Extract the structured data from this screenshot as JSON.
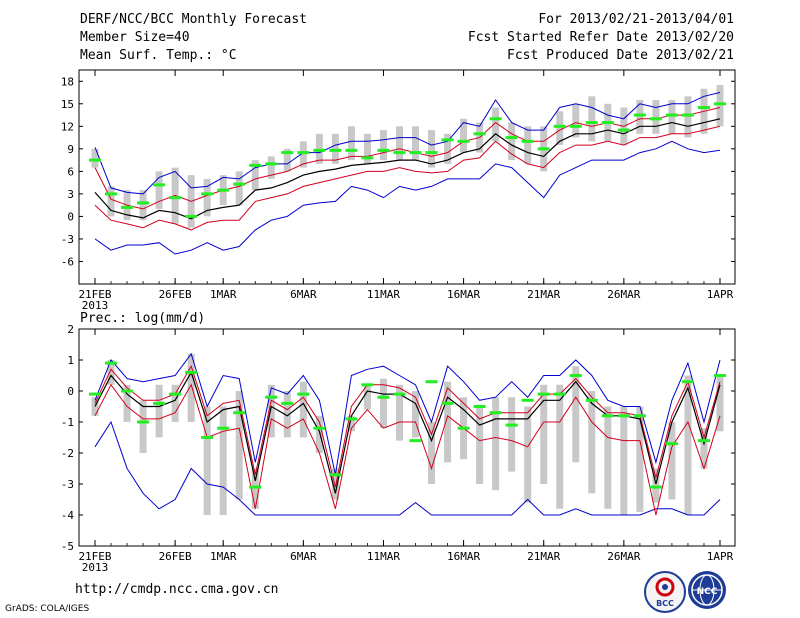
{
  "header": {
    "title": "DERF/NCC/BCC Monthly Forecast",
    "member_size": "Member Size=40",
    "panel1_label": "Mean Surf. Temp.: °C",
    "forecast_period": "For 2013/02/21-2013/04/01",
    "refer_date": "Fcst Started Refer Date 2013/02/20",
    "produced_date": "Fcst Produced Date 2013/02/21"
  },
  "footer": {
    "url": "http://cmdp.ncc.cma.gov.cn",
    "credit": "GrADS: COLA/IGES",
    "logo_bcc": "BCC",
    "logo_ncc": "NCC"
  },
  "colors": {
    "mean": "#000000",
    "spread": "#d0001c",
    "range": "#0000cc",
    "box": "#c8c8c8",
    "obs": "#22ee22"
  },
  "chart_data": [
    {
      "type": "line",
      "title": "Mean Surf. Temp.: °C",
      "xlabel": "",
      "ylabel": "°C",
      "xlim": [
        0,
        39
      ],
      "ylim": [
        -9,
        19.5
      ],
      "yticks": [
        -6,
        -3,
        0,
        3,
        6,
        9,
        12,
        15,
        18
      ],
      "xticks": [
        {
          "x": 0,
          "label": "21FEB"
        },
        {
          "x": 5,
          "label": "26FEB"
        },
        {
          "x": 8,
          "label": "1MAR"
        },
        {
          "x": 13,
          "label": "6MAR"
        },
        {
          "x": 18,
          "label": "11MAR"
        },
        {
          "x": 23,
          "label": "16MAR"
        },
        {
          "x": 28,
          "label": "21MAR"
        },
        {
          "x": 33,
          "label": "26MAR"
        },
        {
          "x": 39,
          "label": "1APR"
        }
      ],
      "year_label": "2013",
      "series": [
        {
          "name": "max",
          "values": [
            9.2,
            3.8,
            3.2,
            3.0,
            5.2,
            6.0,
            3.8,
            4.0,
            5.2,
            5.0,
            6.5,
            7.0,
            7.0,
            8.5,
            8.5,
            9.5,
            10.0,
            10.0,
            10.2,
            10.5,
            10.5,
            9.5,
            10.0,
            12.5,
            12.0,
            15.5,
            12.5,
            11.5,
            11.5,
            14.5,
            15.0,
            14.5,
            13.5,
            13.0,
            15.0,
            14.5,
            15.0,
            15.0,
            16.0,
            16.5
          ]
        },
        {
          "name": "upper",
          "values": [
            6.5,
            2.3,
            1.5,
            1.0,
            2.0,
            2.8,
            2.0,
            2.8,
            3.5,
            4.0,
            5.0,
            5.5,
            6.0,
            7.0,
            7.5,
            7.5,
            8.0,
            8.0,
            8.5,
            9.0,
            8.5,
            8.0,
            8.5,
            10.0,
            10.5,
            12.5,
            11.0,
            10.0,
            10.0,
            11.5,
            12.5,
            12.0,
            12.5,
            12.0,
            13.0,
            13.0,
            13.5,
            13.5,
            14.0,
            14.5
          ]
        },
        {
          "name": "mean",
          "values": [
            3.2,
            0.8,
            0.2,
            -0.2,
            0.8,
            0.5,
            -0.3,
            0.8,
            1.2,
            1.5,
            3.5,
            3.8,
            4.5,
            5.5,
            6.0,
            6.3,
            6.8,
            7.0,
            7.2,
            7.5,
            7.5,
            7.0,
            7.5,
            8.5,
            9.0,
            11.0,
            9.5,
            8.5,
            8.0,
            10.0,
            11.0,
            11.0,
            11.5,
            11.0,
            12.0,
            12.0,
            12.5,
            12.0,
            12.5,
            13.0
          ]
        },
        {
          "name": "lower",
          "values": [
            1.5,
            -0.5,
            -1.0,
            -1.5,
            -0.5,
            -1.0,
            -1.8,
            -0.8,
            -0.5,
            -0.5,
            2.0,
            2.5,
            3.0,
            4.0,
            4.5,
            5.0,
            5.5,
            6.0,
            6.0,
            6.5,
            6.0,
            5.8,
            6.0,
            7.5,
            7.8,
            10.0,
            8.3,
            7.0,
            6.5,
            8.5,
            9.5,
            9.5,
            10.0,
            9.5,
            10.5,
            10.5,
            11.0,
            11.0,
            11.5,
            12.0
          ]
        },
        {
          "name": "min",
          "values": [
            -3.0,
            -4.5,
            -3.8,
            -3.8,
            -3.5,
            -5.0,
            -4.5,
            -3.5,
            -4.5,
            -4.0,
            -1.8,
            -0.5,
            0.0,
            1.5,
            1.8,
            2.0,
            4.0,
            3.5,
            2.5,
            4.0,
            3.5,
            4.0,
            5.0,
            5.0,
            5.0,
            7.0,
            6.5,
            4.5,
            2.5,
            5.5,
            6.5,
            7.5,
            7.5,
            7.5,
            8.5,
            9.0,
            10.0,
            9.0,
            8.5,
            8.8
          ]
        },
        {
          "name": "box_top",
          "values": [
            9.0,
            4.0,
            3.5,
            3.5,
            6.0,
            6.5,
            5.5,
            5.0,
            5.5,
            6.0,
            7.5,
            8.0,
            9.0,
            10.0,
            11.0,
            11.0,
            12.0,
            11.0,
            11.5,
            12.0,
            12.0,
            11.5,
            11.0,
            13.0,
            12.5,
            14.5,
            12.5,
            12.0,
            12.0,
            14.0,
            15.0,
            16.0,
            15.0,
            14.5,
            15.5,
            15.5,
            15.5,
            16.0,
            17.0,
            17.5
          ]
        },
        {
          "name": "box_bottom",
          "values": [
            6.5,
            0.0,
            -0.5,
            -0.5,
            1.0,
            -1.0,
            -1.5,
            0.0,
            1.5,
            1.5,
            3.5,
            5.0,
            6.0,
            6.5,
            7.0,
            7.0,
            7.5,
            7.0,
            7.5,
            7.5,
            7.5,
            6.5,
            7.0,
            8.5,
            8.5,
            10.0,
            7.5,
            7.0,
            6.0,
            9.5,
            10.5,
            10.0,
            10.0,
            9.5,
            11.0,
            11.0,
            11.0,
            10.5,
            11.0,
            12.0
          ]
        },
        {
          "name": "obs",
          "values": [
            7.5,
            3.0,
            1.2,
            1.8,
            4.2,
            2.5,
            0.0,
            3.0,
            3.5,
            4.3,
            6.8,
            7.0,
            8.5,
            8.5,
            8.8,
            8.8,
            8.8,
            7.8,
            8.8,
            8.5,
            8.5,
            8.5,
            10.2,
            10.0,
            11.0,
            13.0,
            10.5,
            10.0,
            9.0,
            12.0,
            12.0,
            12.5,
            12.5,
            11.5,
            13.5,
            13.0,
            13.5,
            13.5,
            14.5,
            15.0
          ]
        }
      ]
    },
    {
      "type": "line",
      "title": "Prec.: log(mm/d)",
      "xlabel": "",
      "ylabel": "log(mm/d)",
      "xlim": [
        0,
        39
      ],
      "ylim": [
        -5,
        2
      ],
      "yticks": [
        -5,
        -4,
        -3,
        -2,
        -1,
        0,
        1,
        2
      ],
      "xticks": [
        {
          "x": 0,
          "label": "21FEB"
        },
        {
          "x": 5,
          "label": "26FEB"
        },
        {
          "x": 8,
          "label": "1MAR"
        },
        {
          "x": 13,
          "label": "6MAR"
        },
        {
          "x": 18,
          "label": "11MAR"
        },
        {
          "x": 23,
          "label": "16MAR"
        },
        {
          "x": 28,
          "label": "21MAR"
        },
        {
          "x": 33,
          "label": "26MAR"
        },
        {
          "x": 39,
          "label": "1APR"
        }
      ],
      "year_label": "2013",
      "series": [
        {
          "name": "max",
          "values": [
            -0.3,
            1.0,
            0.4,
            0.3,
            0.4,
            0.5,
            1.2,
            -0.5,
            0.5,
            0.4,
            -2.3,
            0.1,
            -0.1,
            0.5,
            -0.3,
            -2.7,
            0.5,
            0.7,
            0.8,
            0.5,
            0.2,
            -1.0,
            0.8,
            0.3,
            -0.3,
            -0.2,
            0.3,
            -0.2,
            0.5,
            0.5,
            1.0,
            0.5,
            -0.3,
            -0.5,
            -0.5,
            -2.3,
            -0.3,
            0.9,
            -1.0,
            1.0
          ]
        },
        {
          "name": "upper",
          "values": [
            -0.4,
            0.7,
            0.1,
            -0.3,
            -0.3,
            -0.1,
            0.8,
            -0.8,
            -0.4,
            -0.3,
            -2.7,
            -0.3,
            -0.6,
            -0.2,
            -1.0,
            -3.1,
            -0.5,
            0.2,
            0.2,
            0.1,
            -0.2,
            -1.4,
            0.1,
            -0.4,
            -0.9,
            -0.7,
            -0.7,
            -0.7,
            -0.1,
            -0.1,
            0.4,
            -0.2,
            -0.7,
            -0.7,
            -0.8,
            -2.8,
            -0.8,
            0.3,
            -1.5,
            0.3
          ]
        },
        {
          "name": "mean",
          "values": [
            -0.5,
            0.5,
            -0.1,
            -0.5,
            -0.5,
            -0.3,
            0.6,
            -1.0,
            -0.6,
            -0.5,
            -2.9,
            -0.5,
            -0.8,
            -0.4,
            -1.3,
            -3.3,
            -0.8,
            0.0,
            -0.1,
            -0.1,
            -0.4,
            -1.6,
            -0.2,
            -0.6,
            -1.1,
            -0.9,
            -0.9,
            -0.9,
            -0.3,
            -0.3,
            0.3,
            -0.4,
            -0.8,
            -0.8,
            -0.9,
            -3.0,
            -1.0,
            0.1,
            -1.7,
            0.2
          ]
        },
        {
          "name": "lower",
          "values": [
            -0.8,
            0.2,
            -0.5,
            -0.9,
            -0.9,
            -0.7,
            0.2,
            -1.5,
            -1.3,
            -1.2,
            -3.8,
            -0.9,
            -1.2,
            -0.9,
            -2.0,
            -3.8,
            -1.2,
            -0.6,
            -1.2,
            -1.0,
            -1.0,
            -2.5,
            -0.8,
            -1.2,
            -1.6,
            -1.5,
            -1.6,
            -1.8,
            -1.0,
            -1.0,
            -0.2,
            -1.0,
            -1.5,
            -1.6,
            -1.6,
            -4.0,
            -1.8,
            -1.0,
            -2.5,
            -0.8
          ]
        },
        {
          "name": "min",
          "values": [
            -1.8,
            -1.0,
            -2.5,
            -3.3,
            -3.8,
            -3.5,
            -2.5,
            -3.0,
            -3.1,
            -3.5,
            -4.0,
            -4.0,
            -4.0,
            -4.0,
            -4.0,
            -4.0,
            -4.0,
            -4.0,
            -4.0,
            -4.0,
            -3.6,
            -4.0,
            -4.0,
            -4.0,
            -4.0,
            -4.0,
            -4.0,
            -3.5,
            -4.0,
            -4.0,
            -3.8,
            -4.0,
            -4.0,
            -4.0,
            -4.0,
            -3.8,
            -3.8,
            -4.0,
            -4.0,
            -3.5
          ]
        },
        {
          "name": "box_top",
          "values": [
            -0.2,
            1.0,
            0.2,
            -0.3,
            0.2,
            0.2,
            1.2,
            -0.5,
            -0.5,
            0.0,
            -2.5,
            0.2,
            0.0,
            0.3,
            -0.8,
            -2.5,
            -0.8,
            0.2,
            0.4,
            0.2,
            0.0,
            -1.0,
            0.3,
            -0.2,
            -0.5,
            -0.2,
            -0.2,
            -0.5,
            0.2,
            0.2,
            0.8,
            0.0,
            -0.5,
            -0.5,
            -0.5,
            -2.5,
            -1.0,
            0.5,
            -1.2,
            0.5
          ]
        },
        {
          "name": "box_bottom",
          "values": [
            -0.8,
            0.2,
            -1.0,
            -2.0,
            -1.5,
            -1.0,
            -1.0,
            -4.0,
            -4.0,
            -3.5,
            -3.8,
            -1.5,
            -1.5,
            -1.5,
            -2.0,
            -3.5,
            -1.3,
            -0.6,
            -1.2,
            -1.6,
            -1.5,
            -3.0,
            -2.3,
            -2.2,
            -3.0,
            -3.2,
            -2.6,
            -3.6,
            -3.0,
            -3.8,
            -2.3,
            -3.3,
            -3.8,
            -4.0,
            -3.9,
            -3.6,
            -3.5,
            -4.0,
            -2.5,
            -1.3
          ]
        },
        {
          "name": "obs",
          "values": [
            -0.1,
            0.9,
            0.0,
            -1.0,
            -0.4,
            -0.1,
            0.6,
            -1.5,
            -1.2,
            -0.7,
            -3.1,
            -0.2,
            -0.4,
            -0.1,
            -1.2,
            -2.7,
            -0.9,
            0.2,
            -0.2,
            -0.1,
            -1.6,
            0.3,
            -0.4,
            -1.2,
            -0.5,
            -0.7,
            -1.1,
            -0.3,
            -0.1,
            -0.1,
            0.5,
            -0.3,
            -0.8,
            -0.8,
            -0.8,
            -3.1,
            -1.7,
            0.3,
            -1.6,
            0.5
          ]
        }
      ]
    }
  ]
}
